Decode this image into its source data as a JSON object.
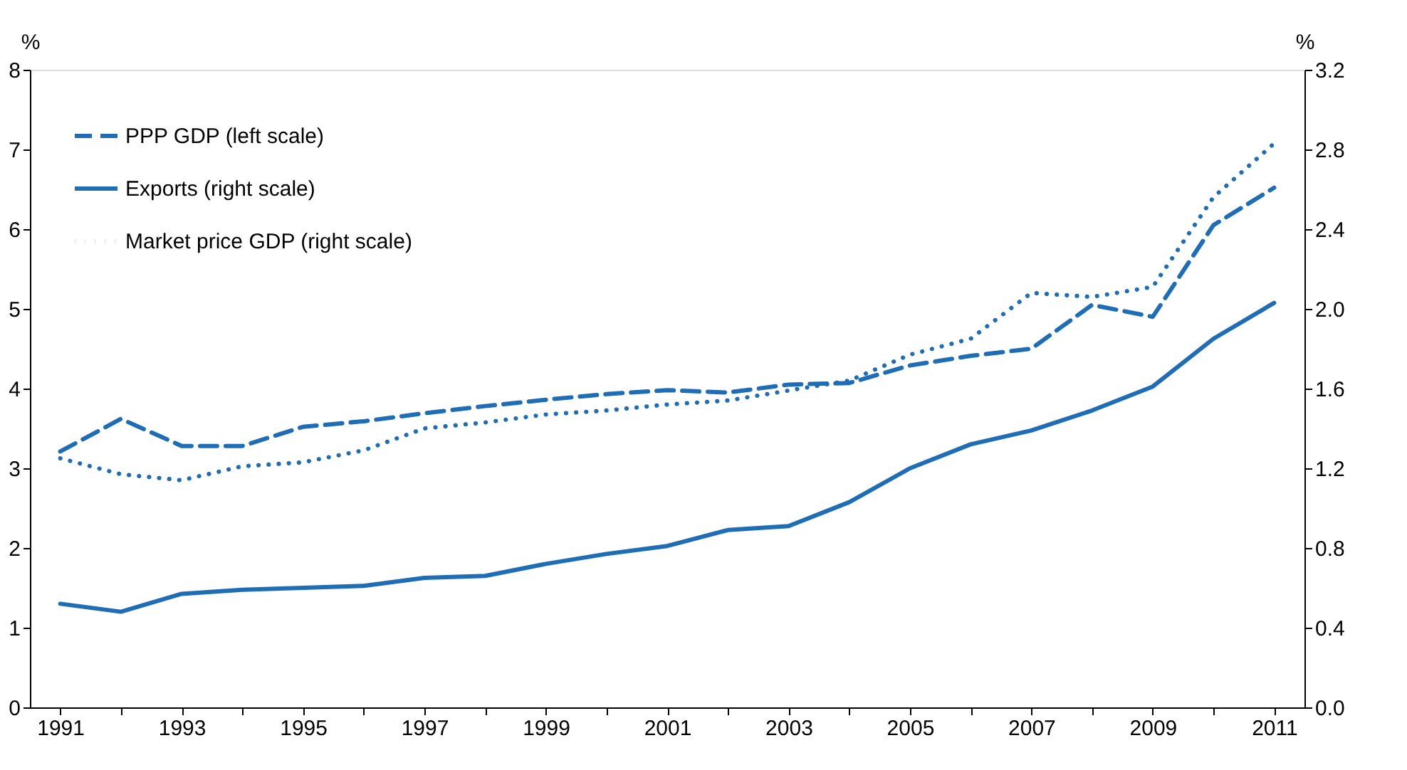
{
  "chart_data": {
    "type": "line",
    "ylabel": "%",
    "y2label": "%",
    "x": [
      1991,
      1992,
      1993,
      1994,
      1995,
      1996,
      1997,
      1998,
      1999,
      2000,
      2001,
      2002,
      2003,
      2004,
      2005,
      2006,
      2007,
      2008,
      2009,
      2010,
      2011
    ],
    "series": [
      {
        "name": "PPP GDP (left scale)",
        "color": "#1f6db5",
        "line_style": "dashed",
        "values": [
          3.21,
          3.62,
          3.28,
          3.28,
          3.52,
          3.59,
          3.69,
          3.78,
          3.86,
          3.93,
          3.98,
          3.95,
          4.05,
          4.07,
          4.29,
          4.41,
          4.5,
          5.05,
          4.9,
          6.05,
          6.52
        ]
      },
      {
        "name": "Exports (right scale)",
        "color": "#1f6db5",
        "line_style": "solid",
        "axis": "y2",
        "values": [
          0.52,
          0.48,
          0.57,
          0.59,
          0.6,
          0.61,
          0.65,
          0.66,
          0.72,
          0.77,
          0.81,
          0.89,
          0.91,
          1.03,
          1.2,
          1.32,
          1.39,
          1.49,
          1.61,
          1.85,
          2.03
        ]
      },
      {
        "name": "Market price GDP (right scale)",
        "color": "#1f6db5",
        "line_style": "dotted",
        "axis": "y2",
        "values": [
          1.25,
          1.17,
          1.14,
          1.21,
          1.23,
          1.29,
          1.4,
          1.43,
          1.47,
          1.49,
          1.52,
          1.54,
          1.59,
          1.64,
          1.77,
          1.85,
          2.08,
          2.06,
          2.11,
          2.56,
          2.83
        ]
      }
    ],
    "xlim": [
      1990.5,
      2011.5
    ],
    "xticks": [
      1991,
      {
        "value": 1992,
        "label": null
      },
      1993,
      {
        "value": 1994,
        "label": null
      },
      1995,
      {
        "value": 1996,
        "label": null
      },
      1997,
      {
        "value": 1998,
        "label": null
      },
      1999,
      {
        "value": 2000,
        "label": null
      },
      2001,
      {
        "value": 2002,
        "label": null
      },
      2003,
      {
        "value": 2004,
        "label": null
      },
      2005,
      {
        "value": 2006,
        "label": null
      },
      2007,
      {
        "value": 2008,
        "label": null
      },
      2009,
      {
        "value": 2010,
        "label": null
      },
      2011
    ],
    "ylim": [
      0,
      8
    ],
    "yticks": [
      0,
      1,
      2,
      3,
      4,
      5,
      6,
      7,
      8
    ],
    "y2lim": [
      0,
      3.2
    ],
    "y2ticks": [
      {
        "value": 0,
        "label": "0.0"
      },
      {
        "value": 0.4,
        "label": "0.4"
      },
      {
        "value": 0.8,
        "label": "0.8"
      },
      {
        "value": 1.2,
        "label": "1.2"
      },
      {
        "value": 1.6,
        "label": "1.6"
      },
      {
        "value": 2,
        "label": "2.0"
      },
      {
        "value": 2.4,
        "label": "2.4"
      },
      {
        "value": 2.8,
        "label": "2.8"
      },
      {
        "value": 3.2,
        "label": "3.2"
      }
    ],
    "grid": false,
    "legend": "top left",
    "marker": "none"
  }
}
